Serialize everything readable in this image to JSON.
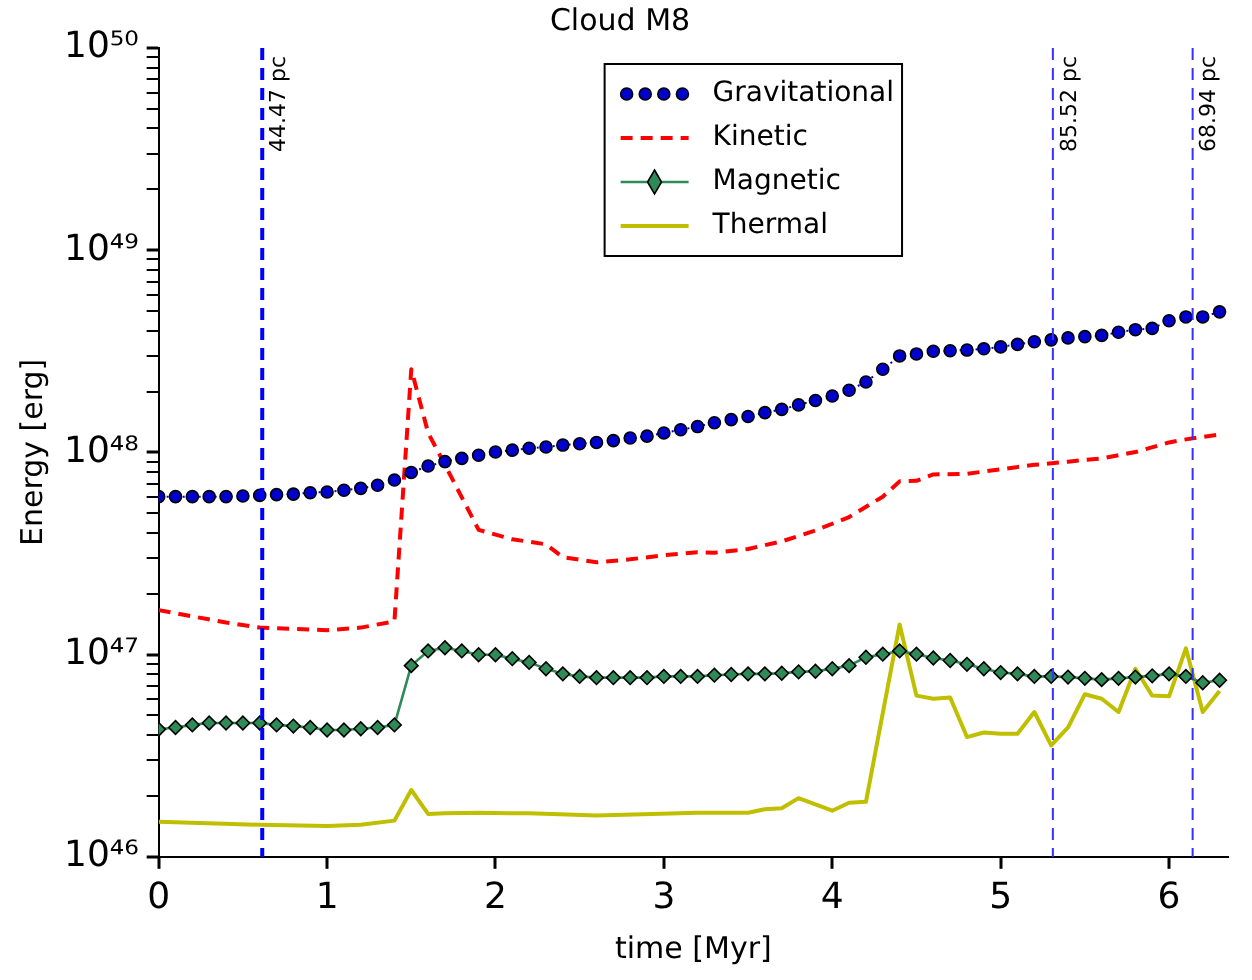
{
  "chart_data": {
    "type": "line",
    "title": "Cloud M8",
    "xlabel": "time [Myr]",
    "ylabel": "Energy [erg]",
    "xlim": [
      0,
      6.35
    ],
    "xticks": [
      0,
      1,
      2,
      3,
      4,
      5,
      6
    ],
    "ylim": [
      1e+46,
      1e+50
    ],
    "yticks": [
      {
        "value": 1e+46,
        "label": "10⁴⁶"
      },
      {
        "value": 2e+46,
        "label": null
      },
      {
        "value": 3e+46,
        "label": null
      },
      {
        "value": 4e+46,
        "label": null
      },
      {
        "value": 5e+46,
        "label": null
      },
      {
        "value": 6e+46,
        "label": null
      },
      {
        "value": 7e+46,
        "label": null
      },
      {
        "value": 8e+46,
        "label": null
      },
      {
        "value": 9e+46,
        "label": null
      },
      {
        "value": 1e+47,
        "label": "10⁴⁷"
      },
      {
        "value": 2e+47,
        "label": null
      },
      {
        "value": 3e+47,
        "label": null
      },
      {
        "value": 4e+47,
        "label": null
      },
      {
        "value": 5e+47,
        "label": null
      },
      {
        "value": 6e+47,
        "label": null
      },
      {
        "value": 7e+47,
        "label": null
      },
      {
        "value": 8e+47,
        "label": null
      },
      {
        "value": 9e+47,
        "label": null
      },
      {
        "value": 1e+48,
        "label": "10⁴⁸"
      },
      {
        "value": 2e+48,
        "label": null
      },
      {
        "value": 3e+48,
        "label": null
      },
      {
        "value": 4e+48,
        "label": null
      },
      {
        "value": 5e+48,
        "label": null
      },
      {
        "value": 6e+48,
        "label": null
      },
      {
        "value": 7e+48,
        "label": null
      },
      {
        "value": 8e+48,
        "label": null
      },
      {
        "value": 9e+48,
        "label": null
      },
      {
        "value": 1e+49,
        "label": "10⁴⁹"
      },
      {
        "value": 2e+49,
        "label": null
      },
      {
        "value": 3e+49,
        "label": null
      },
      {
        "value": 4e+49,
        "label": null
      },
      {
        "value": 5e+49,
        "label": null
      },
      {
        "value": 6e+49,
        "label": null
      },
      {
        "value": 7e+49,
        "label": null
      },
      {
        "value": 8e+49,
        "label": null
      },
      {
        "value": 9e+49,
        "label": null
      },
      {
        "value": 1e+50,
        "label": "10⁵⁰"
      }
    ],
    "log": "y",
    "grid": false,
    "legend": "top",
    "x": [
      0,
      0.1,
      0.2,
      0.3,
      0.4,
      0.5,
      0.6,
      0.7,
      0.8,
      0.9,
      1,
      1.1,
      1.2,
      1.3,
      1.4,
      1.5,
      1.6,
      1.7,
      1.8,
      1.9,
      2,
      2.1,
      2.2,
      2.3,
      2.4,
      2.5,
      2.6,
      2.7,
      2.8,
      2.9,
      3,
      3.1,
      3.2,
      3.3,
      3.4,
      3.5,
      3.6,
      3.7,
      3.8,
      3.9,
      4,
      4.1,
      4.2,
      4.3,
      4.4,
      4.5,
      4.6,
      4.7,
      4.8,
      4.9,
      5,
      5.1,
      5.2,
      5.3,
      5.4,
      5.5,
      5.6,
      5.7,
      5.8,
      5.9,
      6,
      6.1,
      6.2,
      6.3
    ],
    "series": [
      {
        "name": "Gravitational",
        "color": "#0000cc",
        "marker": "circle",
        "line_style": "dotted",
        "values": [
          6.04e+47,
          6.04e+47,
          6.04e+47,
          6.04e+47,
          6.04e+47,
          6.09e+47,
          6.13e+47,
          6.18e+47,
          6.22e+47,
          6.32e+47,
          6.37e+47,
          6.5e+47,
          6.64e+47,
          6.88e+47,
          7.3e+47,
          7.96e+47,
          8.56e+47,
          9e+47,
          9.34e+47,
          9.68e+47,
          1.004e+48,
          1.026e+48,
          1.048e+48,
          1.064e+48,
          1.087e+48,
          1.104e+48,
          1.12e+48,
          1.143e+48,
          1.178e+48,
          1.203e+48,
          1.248e+48,
          1.294e+48,
          1.342e+48,
          1.402e+48,
          1.452e+48,
          1.506e+48,
          1.573e+48,
          1.633e+48,
          1.718e+48,
          1.807e+48,
          1.9e+48,
          2.029e+48,
          2.23e+48,
          2.576e+48,
          3e+48,
          3.069e+48,
          3.162e+48,
          3.184e+48,
          3.207e+48,
          3.253e+48,
          3.325e+48,
          3.423e+48,
          3.524e+48,
          3.603e+48,
          3.683e+48,
          3.736e+48,
          3.791e+48,
          3.928e+48,
          4.045e+48,
          4.104e+48,
          4.477e+48,
          4.677e+48,
          4.677e+48,
          4.955e+48
        ]
      },
      {
        "name": "Kinetic",
        "color": "#ff0000",
        "marker": "none",
        "line_style": "dashed",
        "x": [
          0,
          0.4,
          0.6,
          1,
          1.2,
          1.4,
          1.5,
          1.6,
          1.7,
          1.9,
          2.1,
          2.3,
          2.4,
          2.6,
          2.8,
          3,
          3.2,
          3.3,
          3.5,
          3.7,
          3.9,
          4.1,
          4.3,
          4.4,
          4.5,
          4.6,
          4.8,
          5,
          5.2,
          5.4,
          5.6,
          5.8,
          6,
          6.1,
          6.28
        ],
        "values": [
          1.66e+47,
          1.44e+47,
          1.36e+47,
          1.32e+47,
          1.36e+47,
          1.46e+47,
          2.58e+48,
          1.25e+48,
          8.68e+47,
          4.14e+47,
          3.72e+47,
          3.51e+47,
          3.03e+47,
          2.86e+47,
          2.96e+47,
          3.1e+47,
          3.21e+47,
          3.19e+47,
          3.33e+47,
          3.63e+47,
          4.11e+47,
          4.79e+47,
          6.04e+47,
          7.19e+47,
          7.24e+47,
          7.78e+47,
          7.84e+47,
          8.25e+47,
          8.68e+47,
          9e+47,
          9.34e+47,
          1.004e+48,
          1.12e+48,
          1.16e+48,
          1.22e+48
        ]
      },
      {
        "name": "Magnetic",
        "color": "#2e8b57",
        "marker": "diamond",
        "line_style": "solid",
        "values": [
          4.27e+46,
          4.36e+46,
          4.49e+46,
          4.59e+46,
          4.59e+46,
          4.59e+46,
          4.59e+46,
          4.49e+46,
          4.43e+46,
          4.36e+46,
          4.24e+46,
          4.24e+46,
          4.3e+46,
          4.36e+46,
          4.49e+46,
          8.82e+46,
          1.043e+47,
          1.081e+47,
          1.043e+47,
          9.98e+46,
          9.98e+46,
          9.55e+46,
          9.15e+46,
          8.51e+46,
          8.03e+46,
          7.8e+46,
          7.69e+46,
          7.69e+46,
          7.69e+46,
          7.69e+46,
          7.8e+46,
          7.8e+46,
          7.8e+46,
          7.91e+46,
          7.97e+46,
          8.03e+46,
          8.03e+46,
          8.09e+46,
          8.21e+46,
          8.27e+46,
          8.51e+46,
          8.82e+46,
          9.7e+46,
          1.005e+47,
          1.043e+47,
          1.005e+47,
          9.62e+46,
          9.35e+46,
          8.95e+46,
          8.51e+46,
          8.15e+46,
          8.03e+46,
          7.8e+46,
          7.8e+46,
          7.74e+46,
          7.63e+46,
          7.52e+46,
          7.63e+46,
          7.74e+46,
          7.85e+46,
          8.03e+46,
          7.8e+46,
          7.26e+46,
          7.47e+46
        ]
      },
      {
        "name": "Thermal",
        "color": "#bfbf00",
        "marker": "none",
        "line_style": "solid",
        "x": [
          0,
          0.6,
          1,
          1.2,
          1.4,
          1.5,
          1.6,
          1.7,
          1.9,
          2.2,
          2.6,
          3.2,
          3.5,
          3.6,
          3.7,
          3.8,
          4,
          4.1,
          4.2,
          4.4,
          4.5,
          4.6,
          4.7,
          4.8,
          4.9,
          5,
          5.1,
          5.2,
          5.3,
          5.4,
          5.5,
          5.6,
          5.7,
          5.8,
          5.9,
          6,
          6.1,
          6.2,
          6.3
        ],
        "values": [
          1.49e+46,
          1.44e+46,
          1.42e+46,
          1.44e+46,
          1.51e+46,
          2.14e+46,
          1.63e+46,
          1.64e+46,
          1.65e+46,
          1.64e+46,
          1.6e+46,
          1.65e+46,
          1.65e+46,
          1.72e+46,
          1.74e+46,
          1.95e+46,
          1.69e+46,
          1.85e+46,
          1.87e+46,
          1.41e+47,
          6.27e+46,
          6.05e+46,
          6.14e+46,
          3.91e+46,
          4.12e+46,
          4.06e+46,
          4.06e+46,
          5.2e+46,
          3.56e+46,
          4.36e+46,
          6.37e+46,
          6.05e+46,
          5.2e+46,
          8.51e+46,
          6.27e+46,
          6.22e+46,
          1.074e+47,
          5.2e+46,
          6.61e+46
        ]
      }
    ],
    "ref_lines": [
      {
        "axis": "x",
        "value": 0.615,
        "label": "44.47 pc",
        "color": "#0000ff",
        "line_style": "dashed"
      },
      {
        "axis": "x",
        "value": 5.31,
        "label": "85.52 pc",
        "color": "#3333ff",
        "line_style": "dashed"
      },
      {
        "axis": "x",
        "value": 6.14,
        "label": "68.94 pc",
        "color": "#3333ff",
        "line_style": "dashed"
      }
    ]
  }
}
